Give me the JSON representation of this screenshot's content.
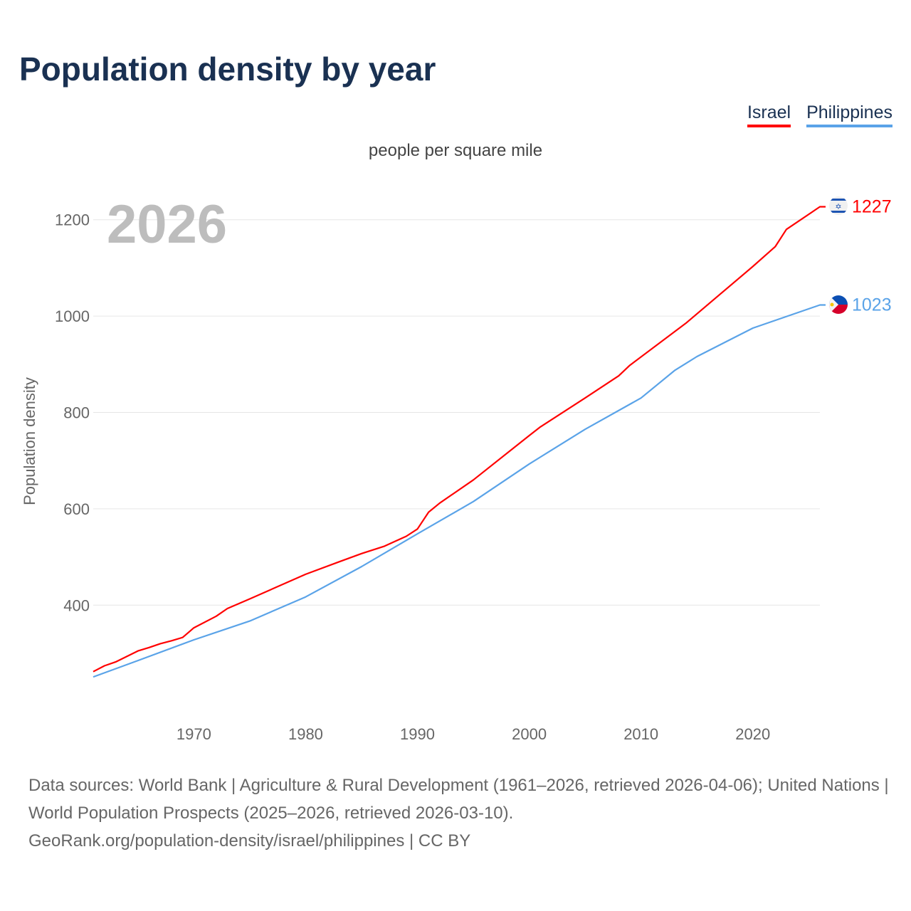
{
  "chart_data": {
    "type": "line",
    "title": "Population density by year",
    "subtitle": "people per square mile",
    "ylabel": "Population density",
    "xlabel": "",
    "current_year_label": "2026",
    "xlim": [
      1961,
      2026
    ],
    "ylim": [
      164,
      1272
    ],
    "xticks": [
      1970,
      1980,
      1990,
      2000,
      2010,
      2020
    ],
    "yticks": [
      400,
      600,
      800,
      1000,
      1200
    ],
    "grid": true,
    "legend_position": "top-right",
    "series": [
      {
        "name": "Israel",
        "color": "#ff0000",
        "end_label": "1227",
        "x": [
          1961,
          1962,
          1963,
          1965,
          1966,
          1967,
          1968,
          1969,
          1970,
          1972,
          1973,
          1975,
          1980,
          1983,
          1985,
          1987,
          1989,
          1990,
          1991,
          1992,
          1995,
          2000,
          2001,
          2005,
          2008,
          2009,
          2014,
          2020,
          2022,
          2023,
          2026
        ],
        "y": [
          262,
          274,
          282,
          305,
          312,
          320,
          326,
          333,
          353,
          377,
          393,
          413,
          464,
          490,
          507,
          522,
          543,
          558,
          593,
          612,
          660,
          752,
          770,
          830,
          876,
          898,
          985,
          1103,
          1144,
          1180,
          1227
        ]
      },
      {
        "name": "Philippines",
        "color": "#5aa3e8",
        "end_label": "1023",
        "x": [
          1961,
          1965,
          1970,
          1975,
          1980,
          1985,
          1990,
          1995,
          2000,
          2005,
          2010,
          2013,
          2015,
          2020,
          2026
        ],
        "y": [
          251,
          285,
          328,
          367,
          417,
          480,
          548,
          615,
          693,
          765,
          830,
          887,
          916,
          975,
          1023
        ]
      }
    ]
  },
  "footer": {
    "line1": "Data sources: World Bank | Agriculture & Rural Development (1961–2026, retrieved 2026-04-06); United Nations | World Population Prospects (2025–2026, retrieved 2026-03-10).",
    "line2": "GeoRank.org/population-density/israel/philippines | CC BY"
  },
  "icons": {
    "israel": "israel-flag-icon",
    "philippines": "philippines-flag-icon"
  }
}
